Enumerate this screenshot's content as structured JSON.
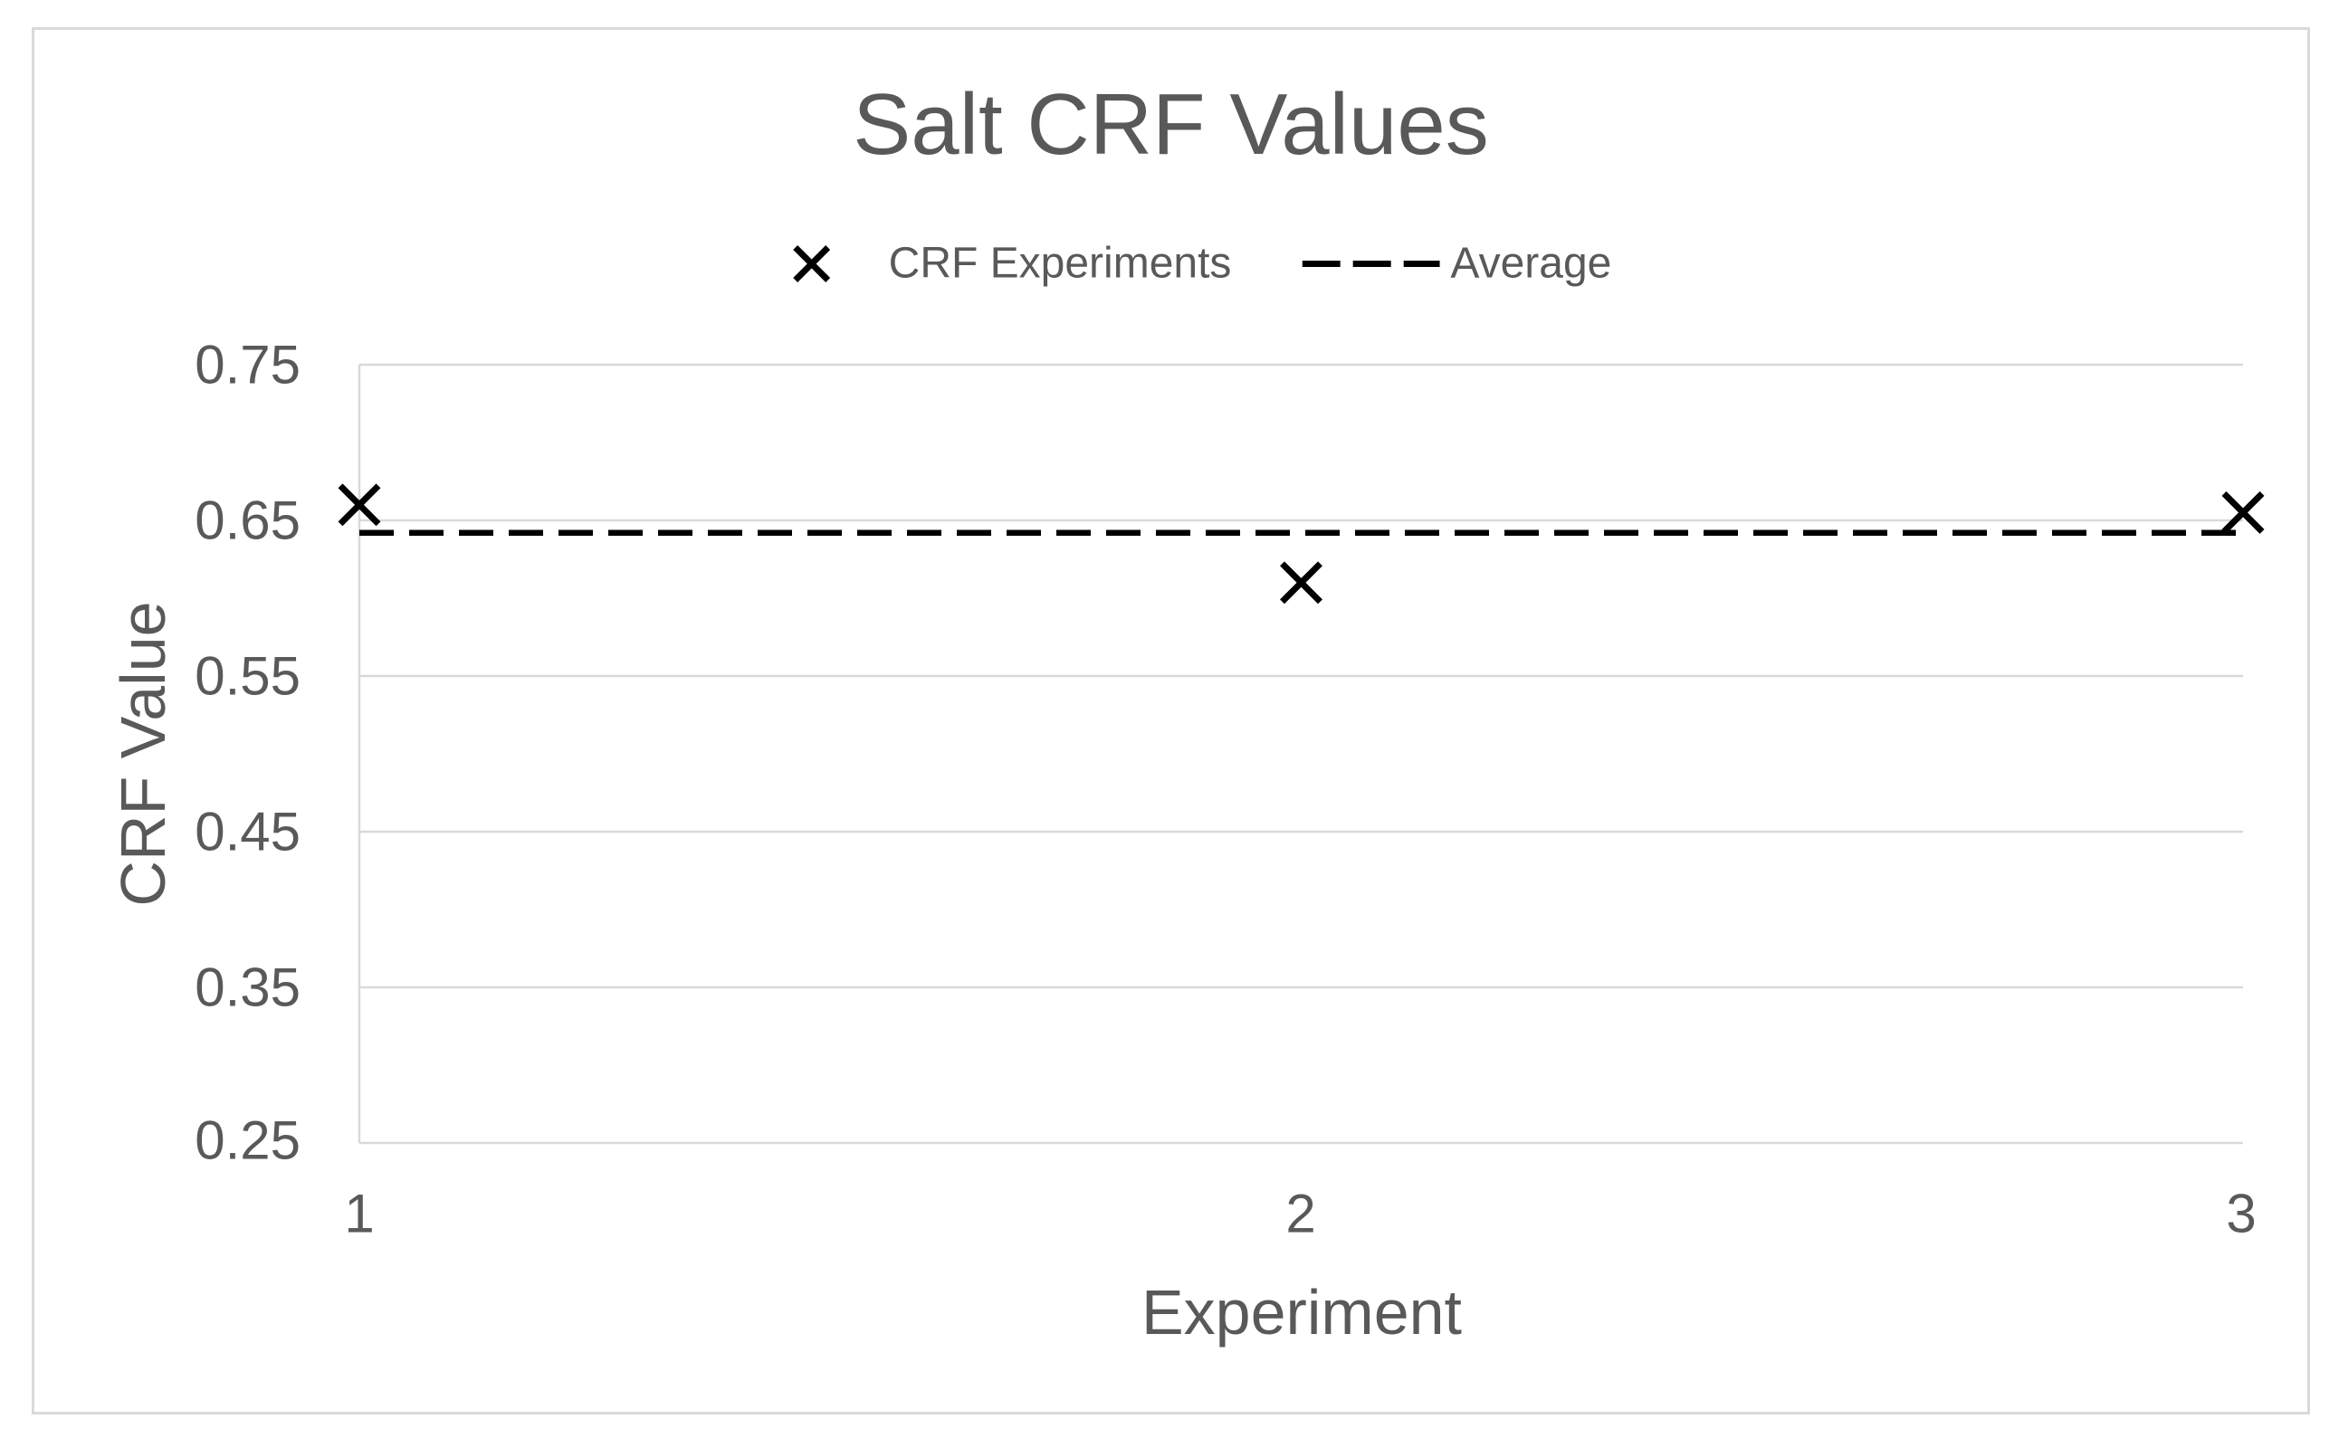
{
  "chart_data": {
    "type": "scatter",
    "title": "Salt CRF Values",
    "xlabel": "Experiment",
    "ylabel": "CRF Value",
    "categories": [
      1,
      2,
      3
    ],
    "series": [
      {
        "name": "CRF Experiments",
        "marker": "x",
        "values": [
          0.66,
          0.61,
          0.655
        ]
      },
      {
        "name": "Average",
        "style": "dashed-horizontal-line",
        "values": [
          0.642,
          0.642,
          0.642
        ]
      }
    ],
    "average": 0.642,
    "ylim": [
      0.25,
      0.75
    ],
    "yticks": [
      0.75,
      0.65,
      0.55,
      0.45,
      0.35,
      0.25
    ],
    "ytick_labels": [
      "0.75",
      "0.65",
      "0.55",
      "0.45",
      "0.35",
      "0.25"
    ],
    "xtick_labels": [
      "1",
      "2",
      "3"
    ],
    "grid": "horizontal-only",
    "legend_position": "top-center",
    "colors": {
      "text": "#595959",
      "gridline": "#D9D9D9",
      "border": "#D9D9D9",
      "data": "#000000"
    }
  }
}
